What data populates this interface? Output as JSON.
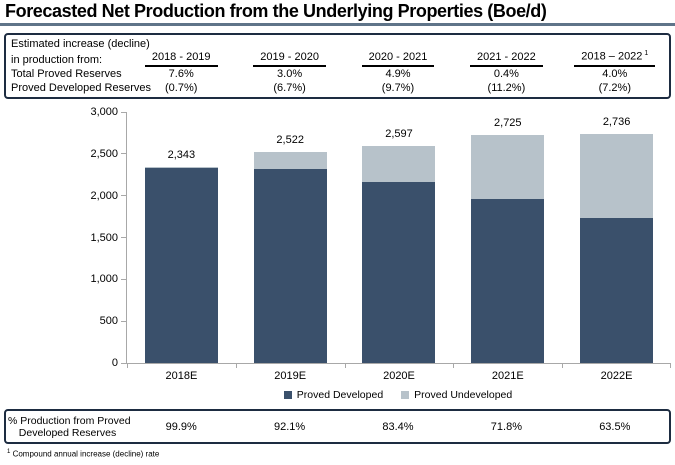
{
  "title": "Forecasted Net Production from the Underlying Properties (Boe/d)",
  "colors": {
    "developed": "#3a506b",
    "undeveloped": "#b7c2ca",
    "table_border": "#1d2c41",
    "title_rule": "#5f7489",
    "axis": "#a8a8a8"
  },
  "estimates_table": {
    "label_line1": "Estimated increase (decline)",
    "label_line2": "in production from:",
    "column_headers": [
      "2018 - 2019",
      "2019 - 2020",
      "2020 - 2021",
      "2021 - 2022",
      "2018 – 2022"
    ],
    "last_header_superscript": "1",
    "rows": [
      {
        "label": "Total Proved Reserves",
        "values": [
          "7.6%",
          "3.0%",
          "4.9%",
          "0.4%",
          "4.0%"
        ]
      },
      {
        "label": "Proved Developed Reserves",
        "values": [
          "(0.7%)",
          "(6.7%)",
          "(9.7%)",
          "(11.2%)",
          "(7.2%)"
        ]
      }
    ]
  },
  "chart_data": {
    "type": "bar",
    "stacked": true,
    "categories": [
      "2018E",
      "2019E",
      "2020E",
      "2021E",
      "2022E"
    ],
    "series": [
      {
        "name": "Proved Developed",
        "color": "#3a506b",
        "values": [
          2341,
          2323,
          2166,
          1957,
          1737
        ]
      },
      {
        "name": "Proved Undeveloped",
        "color": "#b7c2ca",
        "values": [
          2,
          199,
          431,
          768,
          999
        ]
      }
    ],
    "totals": [
      2343,
      2522,
      2597,
      2725,
      2736
    ],
    "total_labels": [
      "2,343",
      "2,522",
      "2,597",
      "2,725",
      "2,736"
    ],
    "developed_pct_of_total": [
      "99.9%",
      "92.1%",
      "83.4%",
      "71.8%",
      "63.5%"
    ],
    "ylim": [
      0,
      3000
    ],
    "ytick_step": 500,
    "ytick_labels": [
      "0",
      "500",
      "1,000",
      "1,500",
      "2,000",
      "2,500",
      "3,000"
    ],
    "grid": false,
    "legend_position": "bottom"
  },
  "bottom_table": {
    "label_line1": "% Production from Proved",
    "label_line2": "Developed Reserves",
    "values": [
      "99.9%",
      "92.1%",
      "83.4%",
      "71.8%",
      "63.5%"
    ]
  },
  "footnote": {
    "superscript": "1",
    "text": "Compound annual increase (decline) rate"
  }
}
